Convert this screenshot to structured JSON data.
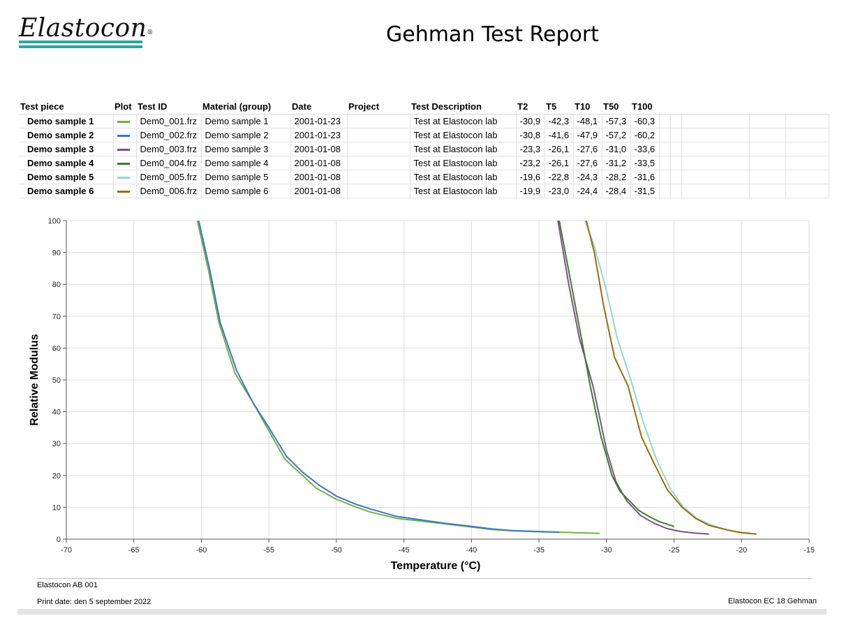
{
  "header": {
    "logo_text": "Elastocon",
    "logo_reg": "®",
    "logo_colors": {
      "bar": "#2aa79b"
    },
    "title": "Gehman Test Report"
  },
  "table": {
    "columns": [
      "Test piece",
      "Plot",
      "Test ID",
      "Material (group)",
      "Date",
      "Project",
      "Test Description",
      "T2",
      "T5",
      "T10",
      "T50",
      "T100"
    ],
    "rows": [
      {
        "test_piece": "Demo sample 1",
        "color": "#6bb344",
        "test_id": "Dem0_001.frz",
        "material": "Demo sample 1",
        "date": "2001-01-23",
        "project": "",
        "description": "Test at Elastocon lab",
        "t2": "-30,9",
        "t5": "-42,3",
        "t10": "-48,1",
        "t50": "-57,3",
        "t100": "-60,3"
      },
      {
        "test_piece": "Demo sample 2",
        "color": "#4472c4",
        "test_id": "Dem0_002.frz",
        "material": "Demo sample 2",
        "date": "2001-01-23",
        "project": "",
        "description": "Test at Elastocon lab",
        "t2": "-30,8",
        "t5": "-41,6",
        "t10": "-47,9",
        "t50": "-57,2",
        "t100": "-60,2"
      },
      {
        "test_piece": "Demo sample 3",
        "color": "#7b4f8a",
        "test_id": "Dem0_003.frz",
        "material": "Demo sample 3",
        "date": "2001-01-08",
        "project": "",
        "description": "Test at Elastocon lab",
        "t2": "-23,3",
        "t5": "-26,1",
        "t10": "-27,6",
        "t50": "-31,0",
        "t100": "-33,6"
      },
      {
        "test_piece": "Demo sample 4",
        "color": "#3e7a2f",
        "test_id": "Dem0_004.frz",
        "material": "Demo sample 4",
        "date": "2001-01-08",
        "project": "",
        "description": "Test at Elastocon lab",
        "t2": "-23,2",
        "t5": "-26,1",
        "t10": "-27,6",
        "t50": "-31,2",
        "t100": "-33,5"
      },
      {
        "test_piece": "Demo sample 5",
        "color": "#8fd8d0",
        "test_id": "Dem0_005.frz",
        "material": "Demo sample 5",
        "date": "2001-01-08",
        "project": "",
        "description": "Test at Elastocon lab",
        "t2": "-19,6",
        "t5": "-22,8",
        "t10": "-24,3",
        "t50": "-28,2",
        "t100": "-31,6"
      },
      {
        "test_piece": "Demo sample 6",
        "color": "#9a6d05",
        "test_id": "Dem0_006.frz",
        "material": "Demo sample 6",
        "date": "2001-01-08",
        "project": "",
        "description": "Test at Elastocon lab",
        "t2": "-19,9",
        "t5": "-23,0",
        "t10": "-24,4",
        "t50": "-28,4",
        "t100": "-31,5"
      }
    ]
  },
  "chart_data": {
    "type": "line",
    "title": "",
    "xlabel": "Temperature (°C)",
    "ylabel": "Relative Modulus",
    "xlim": [
      -70,
      -15
    ],
    "ylim": [
      0,
      100
    ],
    "xticks": [
      -70,
      -65,
      -60,
      -55,
      -50,
      -45,
      -40,
      -35,
      -30,
      -25,
      -20,
      -15
    ],
    "yticks": [
      0,
      10,
      20,
      30,
      40,
      50,
      60,
      70,
      80,
      90,
      100
    ],
    "grid": true,
    "series": [
      {
        "name": "Demo sample 1",
        "color": "#6bb344",
        "x": [
          -60.3,
          -59.5,
          -58.7,
          -57.5,
          -56.2,
          -55.0,
          -53.8,
          -52.5,
          -51.5,
          -50.0,
          -48.5,
          -47.5,
          -45.5,
          -44.0,
          -42.0,
          -40.0,
          -38.5,
          -37.0,
          -35.0,
          -33.0,
          -31.5,
          -30.5
        ],
        "y": [
          100,
          85,
          68,
          52,
          43,
          34,
          25,
          20,
          16,
          12.5,
          10,
          8.5,
          6.5,
          5.8,
          4.8,
          3.8,
          3.0,
          2.6,
          2.3,
          2.1,
          1.9,
          1.8
        ]
      },
      {
        "name": "Demo sample 2",
        "color": "#4472c4",
        "x": [
          -60.2,
          -59.4,
          -58.6,
          -57.4,
          -56.2,
          -55.0,
          -53.7,
          -52.5,
          -51.3,
          -50.0,
          -48.6,
          -47.5,
          -45.6,
          -44.0,
          -42.0,
          -40.0,
          -38.5,
          -37.0,
          -35.0,
          -33.5
        ],
        "y": [
          100,
          85,
          68,
          53,
          43,
          35,
          26,
          21,
          17,
          13.5,
          11,
          9.5,
          7.2,
          6.2,
          5.0,
          4.0,
          3.2,
          2.7,
          2.4,
          2.2
        ]
      },
      {
        "name": "Demo sample 3",
        "color": "#7b4f8a",
        "x": [
          -33.6,
          -32.8,
          -32.0,
          -31.0,
          -30.0,
          -29.3,
          -28.5,
          -27.5,
          -26.5,
          -25.5,
          -24.5,
          -23.5,
          -22.4
        ],
        "y": [
          100,
          80,
          63,
          48,
          28,
          18,
          12,
          7.5,
          5.0,
          3.3,
          2.4,
          1.9,
          1.6
        ]
      },
      {
        "name": "Demo sample 4",
        "color": "#3e7a2f",
        "x": [
          -33.5,
          -32.7,
          -31.9,
          -31.2,
          -30.4,
          -29.6,
          -29.0,
          -28.3,
          -27.6,
          -26.8,
          -26.1,
          -25.0
        ],
        "y": [
          100,
          82,
          64,
          48,
          32,
          20,
          15,
          12,
          9,
          7,
          5.5,
          4
        ]
      },
      {
        "name": "Demo sample 5",
        "color": "#8fd8d0",
        "x": [
          -31.6,
          -30.9,
          -30.0,
          -29.2,
          -28.2,
          -27.3,
          -26.3,
          -25.3,
          -24.3,
          -23.3,
          -22.3,
          -21.3,
          -20.3,
          -19.3
        ],
        "y": [
          100,
          92,
          78,
          63,
          50,
          37,
          25,
          16,
          10,
          6.5,
          4.5,
          3.2,
          2.3,
          1.8
        ]
      },
      {
        "name": "Demo sample 6",
        "color": "#9a6d05",
        "x": [
          -31.5,
          -30.9,
          -30.2,
          -29.4,
          -28.4,
          -27.4,
          -26.5,
          -25.5,
          -24.4,
          -23.4,
          -22.4,
          -21.0,
          -20.0,
          -18.9
        ],
        "y": [
          100,
          90,
          73,
          57,
          48,
          32,
          24,
          15.5,
          10,
          6.5,
          4.3,
          2.8,
          2.0,
          1.6
        ]
      }
    ]
  },
  "footer": {
    "company": "Elastocon AB 001",
    "print_date": "Print date: den 5 september 2022",
    "product": "Elastocon EC 18 Gehman"
  }
}
